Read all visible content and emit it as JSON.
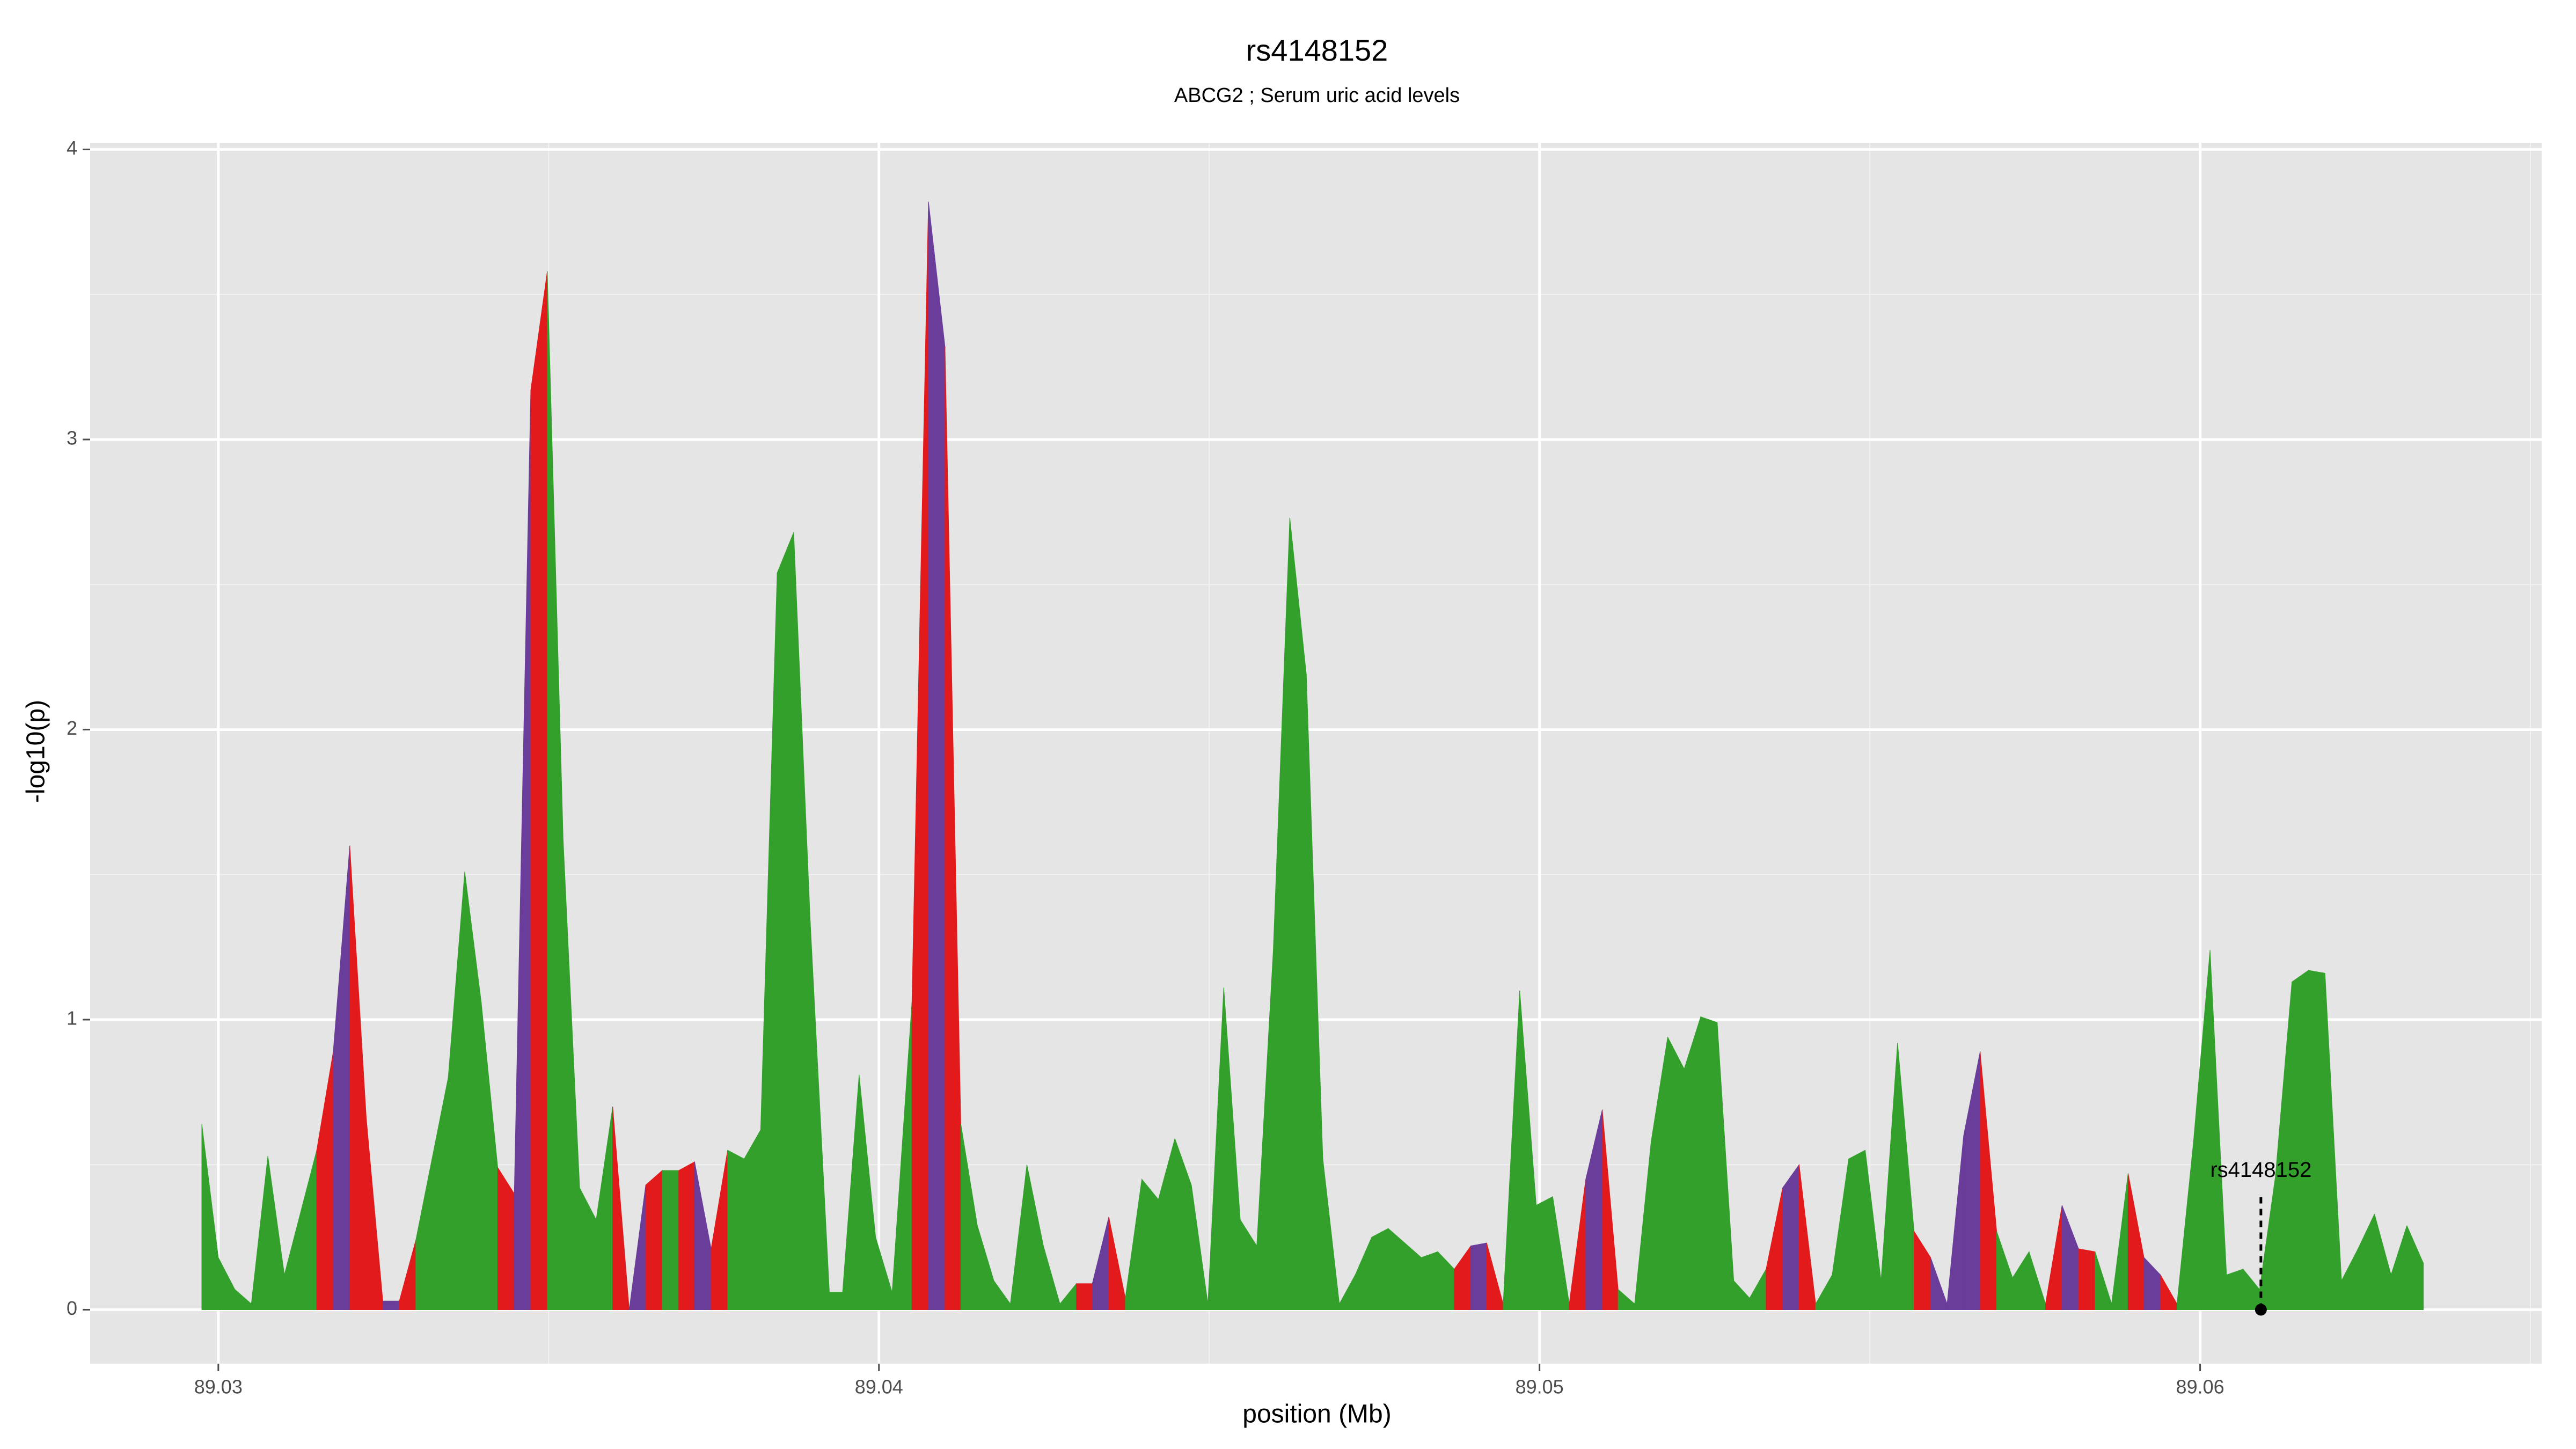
{
  "chart_data": {
    "type": "area",
    "title": "rs4148152",
    "subtitle": "ABCG2 ; Serum uric acid levels",
    "x_label": "position (Mb)",
    "y_label": "-log10(p)",
    "xlim": [
      89.02806,
      89.06517
    ],
    "ylim": [
      -0.186,
      4.023
    ],
    "xticks": [
      89.03,
      89.04,
      89.05,
      89.06
    ],
    "yticks": [
      0,
      1,
      2,
      3,
      4
    ],
    "grid": true,
    "annotation": {
      "text": "rs4148152",
      "x": 89.06092,
      "y": 0
    },
    "series": [
      {
        "x": [
          89.02975,
          89.03,
          89.03025,
          89.0305,
          89.03075,
          89.031,
          89.03149,
          89.03174,
          89.03199,
          89.03224,
          89.03249,
          89.03274,
          89.03299,
          89.03348,
          89.03373,
          89.03398,
          89.03423,
          89.03448,
          89.03473,
          89.03498,
          89.03522,
          89.03547,
          89.03572,
          89.03597,
          89.03622,
          89.03647,
          89.03672,
          89.03697,
          89.03721,
          89.03746,
          89.03771,
          89.03796,
          89.03821,
          89.03846,
          89.03871,
          89.03896,
          89.03925,
          89.03945,
          89.0397,
          89.03995,
          89.0402,
          89.0405,
          89.04075,
          89.041,
          89.04124,
          89.04149,
          89.04174,
          89.04199,
          89.04224,
          89.04249,
          89.04274,
          89.04299,
          89.04323,
          89.04348,
          89.04373,
          89.04398,
          89.04423,
          89.04448,
          89.04473,
          89.04498,
          89.04522,
          89.04547,
          89.04572,
          89.04597,
          89.04622,
          89.04647,
          89.04672,
          89.04697,
          89.04721,
          89.04746,
          89.04771,
          89.04796,
          89.04821,
          89.04846,
          89.04871,
          89.04896,
          89.0492,
          89.04945,
          89.0497,
          89.04995,
          89.0502,
          89.05045,
          89.0507,
          89.05095,
          89.05119,
          89.05144,
          89.05169,
          89.05194,
          89.05219,
          89.05244,
          89.05269,
          89.05294,
          89.05318,
          89.05343,
          89.05368,
          89.05393,
          89.05418,
          89.05443,
          89.05468,
          89.05493,
          89.05517,
          89.05542,
          89.05567,
          89.05592,
          89.05617,
          89.05642,
          89.05667,
          89.05692,
          89.05716,
          89.05741,
          89.05766,
          89.05791,
          89.05816,
          89.05841,
          89.05866,
          89.05891,
          89.05915,
          89.0594,
          89.05965,
          89.0599,
          89.06015,
          89.0604,
          89.06065,
          89.0609,
          89.06114,
          89.06139,
          89.06164,
          89.06189,
          89.06214,
          89.06239,
          89.06264,
          89.06289,
          89.06313,
          89.06338
        ],
        "values": [
          0.64,
          0.18,
          0.07,
          0.02,
          0.53,
          0.12,
          0.55,
          0.89,
          1.6,
          0.66,
          0.03,
          0.03,
          0.24,
          0.8,
          1.51,
          1.06,
          0.49,
          0.4,
          3.17,
          3.58,
          1.62,
          0.42,
          0.31,
          0.7,
          0.0,
          0.43,
          0.48,
          0.48,
          0.51,
          0.21,
          0.55,
          0.52,
          0.62,
          2.54,
          2.68,
          1.34,
          0.06,
          0.06,
          0.81,
          0.25,
          0.06,
          1.06,
          3.82,
          3.32,
          0.64,
          0.29,
          0.1,
          0.02,
          0.5,
          0.22,
          0.02,
          0.09,
          0.09,
          0.32,
          0.04,
          0.45,
          0.38,
          0.59,
          0.43,
          0.02,
          1.11,
          0.31,
          0.22,
          1.24,
          2.73,
          2.19,
          0.52,
          0.02,
          0.12,
          0.25,
          0.28,
          0.23,
          0.18,
          0.2,
          0.14,
          0.22,
          0.23,
          0.02,
          1.1,
          0.36,
          0.39,
          0.02,
          0.45,
          0.69,
          0.07,
          0.02,
          0.58,
          0.94,
          0.83,
          1.01,
          0.99,
          0.1,
          0.04,
          0.14,
          0.42,
          0.5,
          0.02,
          0.12,
          0.52,
          0.55,
          0.1,
          0.92,
          0.27,
          0.18,
          0.02,
          0.6,
          0.89,
          0.27,
          0.11,
          0.2,
          0.02,
          0.36,
          0.21,
          0.2,
          0.02,
          0.47,
          0.18,
          0.12,
          0.02,
          0.58,
          1.24,
          0.12,
          0.14,
          0.07,
          0.46,
          1.13,
          1.17,
          1.16,
          0.1,
          0.21,
          0.33,
          0.12,
          0.29,
          0.16
        ],
        "colors": [
          "#33a02c",
          "#33a02c",
          "#33a02c",
          "#33a02c",
          "#33a02c",
          "#33a02c",
          "#e31a1c",
          "#6a3d9a",
          "#e31a1c",
          "#e31a1c",
          "#6a3d9a",
          "#e31a1c",
          "#33a02c",
          "#33a02c",
          "#33a02c",
          "#33a02c",
          "#e31a1c",
          "#6a3d9a",
          "#e31a1c",
          "#33a02c",
          "#33a02c",
          "#33a02c",
          "#33a02c",
          "#e31a1c",
          "#6a3d9a",
          "#e31a1c",
          "#33a02c",
          "#e31a1c",
          "#6a3d9a",
          "#e31a1c",
          "#33a02c",
          "#33a02c",
          "#33a02c",
          "#33a02c",
          "#33a02c",
          "#33a02c",
          "#33a02c",
          "#33a02c",
          "#33a02c",
          "#33a02c",
          "#33a02c",
          "#e31a1c",
          "#6a3d9a",
          "#e31a1c",
          "#33a02c",
          "#33a02c",
          "#33a02c",
          "#33a02c",
          "#33a02c",
          "#33a02c",
          "#33a02c",
          "#e31a1c",
          "#6a3d9a",
          "#e31a1c",
          "#33a02c",
          "#33a02c",
          "#33a02c",
          "#33a02c",
          "#33a02c",
          "#33a02c",
          "#33a02c",
          "#33a02c",
          "#33a02c",
          "#33a02c",
          "#33a02c",
          "#33a02c",
          "#33a02c",
          "#33a02c",
          "#33a02c",
          "#33a02c",
          "#33a02c",
          "#33a02c",
          "#33a02c",
          "#33a02c",
          "#e31a1c",
          "#6a3d9a",
          "#e31a1c",
          "#33a02c",
          "#33a02c",
          "#33a02c",
          "#33a02c",
          "#e31a1c",
          "#6a3d9a",
          "#e31a1c",
          "#33a02c",
          "#33a02c",
          "#33a02c",
          "#33a02c",
          "#33a02c",
          "#33a02c",
          "#33a02c",
          "#33a02c",
          "#33a02c",
          "#e31a1c",
          "#6a3d9a",
          "#e31a1c",
          "#33a02c",
          "#33a02c",
          "#33a02c",
          "#33a02c",
          "#33a02c",
          "#33a02c",
          "#e31a1c",
          "#6a3d9a",
          "#6a3d9a",
          "#6a3d9a",
          "#e31a1c",
          "#33a02c",
          "#33a02c",
          "#33a02c",
          "#e31a1c",
          "#6a3d9a",
          "#e31a1c",
          "#33a02c",
          "#33a02c",
          "#e31a1c",
          "#6a3d9a",
          "#e31a1c",
          "#33a02c",
          "#33a02c",
          "#33a02c",
          "#33a02c",
          "#33a02c",
          "#33a02c",
          "#33a02c",
          "#33a02c",
          "#33a02c",
          "#33a02c",
          "#33a02c",
          "#33a02c",
          "#33a02c",
          "#33a02c",
          "#33a02c",
          "#33a02c"
        ]
      }
    ]
  }
}
